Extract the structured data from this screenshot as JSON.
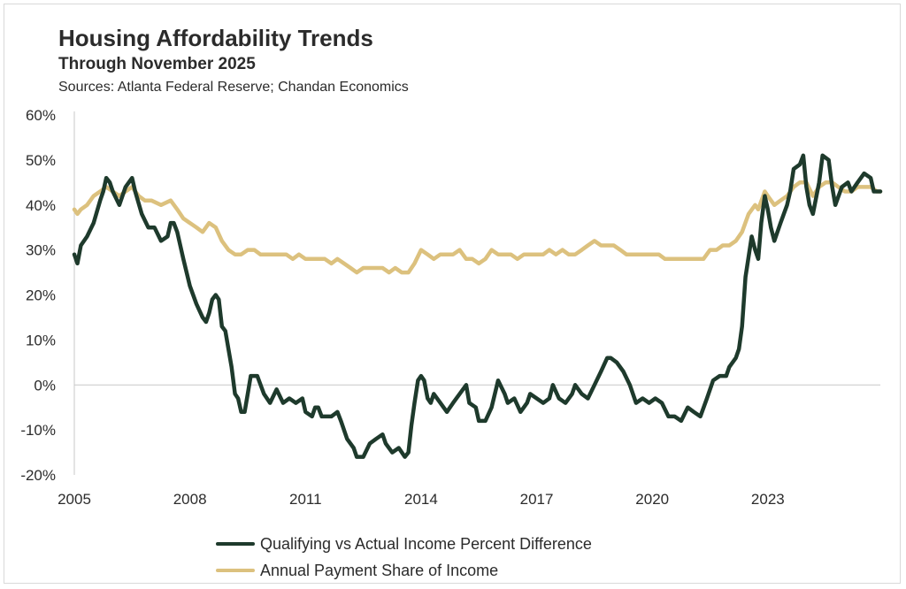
{
  "header": {
    "title": "Housing Affordability Trends",
    "subtitle": "Through November 2025",
    "source": "Sources: Atlanta Federal Reserve; Chandan Economics"
  },
  "colors": {
    "qualifying": "#1e3a2c",
    "payment": "#dcc17e",
    "axis": "#c8c8c8",
    "text": "#2b2b2b"
  },
  "chart_data": {
    "type": "line",
    "title": "Housing Affordability Trends",
    "subtitle": "Through November 2025",
    "xlabel": "",
    "ylabel": "",
    "xlim": [
      2005.0,
      2025.92
    ],
    "ylim": [
      -20,
      60
    ],
    "x_ticks": [
      "2005",
      "2008",
      "2011",
      "2014",
      "2017",
      "2020",
      "2023"
    ],
    "y_ticks": [
      "60%",
      "50%",
      "40%",
      "30%",
      "20%",
      "10%",
      "0%",
      "-10%",
      "-20%"
    ],
    "legend_position": "bottom",
    "series": [
      {
        "name": "Qualifying vs Actual Income Percent Difference",
        "points": [
          [
            2005.0,
            29
          ],
          [
            2005.08,
            27
          ],
          [
            2005.17,
            31
          ],
          [
            2005.33,
            33
          ],
          [
            2005.5,
            36
          ],
          [
            2005.67,
            41
          ],
          [
            2005.75,
            43
          ],
          [
            2005.83,
            46
          ],
          [
            2005.92,
            45
          ],
          [
            2006.0,
            43
          ],
          [
            2006.17,
            40
          ],
          [
            2006.33,
            44
          ],
          [
            2006.5,
            46
          ],
          [
            2006.58,
            43
          ],
          [
            2006.75,
            38
          ],
          [
            2006.92,
            35
          ],
          [
            2007.08,
            35
          ],
          [
            2007.25,
            32
          ],
          [
            2007.42,
            33
          ],
          [
            2007.5,
            36
          ],
          [
            2007.58,
            36
          ],
          [
            2007.67,
            34
          ],
          [
            2007.83,
            28
          ],
          [
            2008.0,
            22
          ],
          [
            2008.17,
            18
          ],
          [
            2008.33,
            15
          ],
          [
            2008.42,
            14
          ],
          [
            2008.5,
            16
          ],
          [
            2008.58,
            19
          ],
          [
            2008.67,
            20
          ],
          [
            2008.75,
            19
          ],
          [
            2008.83,
            13
          ],
          [
            2008.92,
            12
          ],
          [
            2009.0,
            8
          ],
          [
            2009.08,
            4
          ],
          [
            2009.17,
            -2
          ],
          [
            2009.25,
            -3
          ],
          [
            2009.33,
            -6
          ],
          [
            2009.42,
            -6
          ],
          [
            2009.5,
            -2
          ],
          [
            2009.58,
            2
          ],
          [
            2009.75,
            2
          ],
          [
            2009.92,
            -2
          ],
          [
            2010.08,
            -4
          ],
          [
            2010.25,
            -1
          ],
          [
            2010.42,
            -4
          ],
          [
            2010.58,
            -3
          ],
          [
            2010.75,
            -4
          ],
          [
            2010.92,
            -3
          ],
          [
            2011.0,
            -6
          ],
          [
            2011.17,
            -7
          ],
          [
            2011.25,
            -5
          ],
          [
            2011.33,
            -5
          ],
          [
            2011.42,
            -7
          ],
          [
            2011.5,
            -7
          ],
          [
            2011.67,
            -7
          ],
          [
            2011.83,
            -6
          ],
          [
            2011.92,
            -8
          ],
          [
            2012.08,
            -12
          ],
          [
            2012.25,
            -14
          ],
          [
            2012.33,
            -16
          ],
          [
            2012.5,
            -16
          ],
          [
            2012.67,
            -13
          ],
          [
            2012.83,
            -12
          ],
          [
            2013.0,
            -11
          ],
          [
            2013.08,
            -13
          ],
          [
            2013.25,
            -15
          ],
          [
            2013.42,
            -14
          ],
          [
            2013.58,
            -16
          ],
          [
            2013.67,
            -15
          ],
          [
            2013.75,
            -9
          ],
          [
            2013.83,
            -4
          ],
          [
            2013.92,
            1
          ],
          [
            2014.0,
            2
          ],
          [
            2014.08,
            1
          ],
          [
            2014.17,
            -3
          ],
          [
            2014.25,
            -4
          ],
          [
            2014.33,
            -2
          ],
          [
            2014.5,
            -4
          ],
          [
            2014.67,
            -6
          ],
          [
            2014.83,
            -4
          ],
          [
            2015.0,
            -2
          ],
          [
            2015.17,
            0
          ],
          [
            2015.25,
            -4
          ],
          [
            2015.42,
            -5
          ],
          [
            2015.5,
            -8
          ],
          [
            2015.67,
            -8
          ],
          [
            2015.83,
            -5
          ],
          [
            2016.0,
            1
          ],
          [
            2016.17,
            -2
          ],
          [
            2016.25,
            -4
          ],
          [
            2016.42,
            -3
          ],
          [
            2016.58,
            -6
          ],
          [
            2016.75,
            -4
          ],
          [
            2016.83,
            -2
          ],
          [
            2017.0,
            -3
          ],
          [
            2017.17,
            -4
          ],
          [
            2017.33,
            -3
          ],
          [
            2017.42,
            0
          ],
          [
            2017.58,
            -3
          ],
          [
            2017.75,
            -4
          ],
          [
            2017.92,
            -2
          ],
          [
            2018.0,
            0
          ],
          [
            2018.17,
            -2
          ],
          [
            2018.33,
            -3
          ],
          [
            2018.5,
            0
          ],
          [
            2018.67,
            3
          ],
          [
            2018.83,
            6
          ],
          [
            2018.92,
            6
          ],
          [
            2019.08,
            5
          ],
          [
            2019.25,
            3
          ],
          [
            2019.42,
            0
          ],
          [
            2019.58,
            -4
          ],
          [
            2019.75,
            -3
          ],
          [
            2019.92,
            -4
          ],
          [
            2020.08,
            -3
          ],
          [
            2020.25,
            -4
          ],
          [
            2020.42,
            -7
          ],
          [
            2020.58,
            -7
          ],
          [
            2020.75,
            -8
          ],
          [
            2020.92,
            -5
          ],
          [
            2021.08,
            -6
          ],
          [
            2021.25,
            -7
          ],
          [
            2021.42,
            -3
          ],
          [
            2021.58,
            1
          ],
          [
            2021.75,
            2
          ],
          [
            2021.92,
            2
          ],
          [
            2022.0,
            4
          ],
          [
            2022.17,
            6
          ],
          [
            2022.25,
            8
          ],
          [
            2022.33,
            13
          ],
          [
            2022.42,
            24
          ],
          [
            2022.58,
            33
          ],
          [
            2022.67,
            30
          ],
          [
            2022.75,
            28
          ],
          [
            2022.83,
            36
          ],
          [
            2022.92,
            42
          ],
          [
            2023.0,
            39
          ],
          [
            2023.08,
            35
          ],
          [
            2023.17,
            32
          ],
          [
            2023.33,
            36
          ],
          [
            2023.5,
            40
          ],
          [
            2023.58,
            43
          ],
          [
            2023.67,
            48
          ],
          [
            2023.83,
            49
          ],
          [
            2023.92,
            51
          ],
          [
            2024.0,
            44
          ],
          [
            2024.08,
            40
          ],
          [
            2024.17,
            38
          ],
          [
            2024.33,
            45
          ],
          [
            2024.42,
            51
          ],
          [
            2024.58,
            50
          ],
          [
            2024.67,
            44
          ],
          [
            2024.75,
            40
          ],
          [
            2024.92,
            44
          ],
          [
            2025.08,
            45
          ],
          [
            2025.17,
            43
          ],
          [
            2025.33,
            45
          ],
          [
            2025.5,
            47
          ],
          [
            2025.67,
            46
          ],
          [
            2025.75,
            43
          ],
          [
            2025.92,
            43
          ]
        ]
      },
      {
        "name": "Annual Payment Share of Income",
        "points": [
          [
            2005.0,
            39
          ],
          [
            2005.08,
            38
          ],
          [
            2005.17,
            39
          ],
          [
            2005.33,
            40
          ],
          [
            2005.5,
            42
          ],
          [
            2005.67,
            43
          ],
          [
            2005.83,
            44
          ],
          [
            2006.0,
            43
          ],
          [
            2006.17,
            42
          ],
          [
            2006.33,
            43
          ],
          [
            2006.5,
            44
          ],
          [
            2006.67,
            42
          ],
          [
            2006.83,
            41
          ],
          [
            2007.0,
            41
          ],
          [
            2007.25,
            40
          ],
          [
            2007.5,
            41
          ],
          [
            2007.67,
            39
          ],
          [
            2007.83,
            37
          ],
          [
            2008.0,
            36
          ],
          [
            2008.17,
            35
          ],
          [
            2008.33,
            34
          ],
          [
            2008.5,
            36
          ],
          [
            2008.67,
            35
          ],
          [
            2008.83,
            32
          ],
          [
            2009.0,
            30
          ],
          [
            2009.17,
            29
          ],
          [
            2009.33,
            29
          ],
          [
            2009.5,
            30
          ],
          [
            2009.67,
            30
          ],
          [
            2009.83,
            29
          ],
          [
            2010.0,
            29
          ],
          [
            2010.17,
            29
          ],
          [
            2010.33,
            29
          ],
          [
            2010.5,
            29
          ],
          [
            2010.67,
            28
          ],
          [
            2010.83,
            29
          ],
          [
            2011.0,
            28
          ],
          [
            2011.17,
            28
          ],
          [
            2011.33,
            28
          ],
          [
            2011.5,
            28
          ],
          [
            2011.67,
            27
          ],
          [
            2011.83,
            28
          ],
          [
            2012.0,
            27
          ],
          [
            2012.17,
            26
          ],
          [
            2012.33,
            25
          ],
          [
            2012.5,
            26
          ],
          [
            2012.67,
            26
          ],
          [
            2012.83,
            26
          ],
          [
            2013.0,
            26
          ],
          [
            2013.17,
            25
          ],
          [
            2013.33,
            26
          ],
          [
            2013.5,
            25
          ],
          [
            2013.67,
            25
          ],
          [
            2013.83,
            27
          ],
          [
            2014.0,
            30
          ],
          [
            2014.17,
            29
          ],
          [
            2014.33,
            28
          ],
          [
            2014.5,
            29
          ],
          [
            2014.67,
            29
          ],
          [
            2014.83,
            29
          ],
          [
            2015.0,
            30
          ],
          [
            2015.17,
            28
          ],
          [
            2015.33,
            28
          ],
          [
            2015.5,
            27
          ],
          [
            2015.67,
            28
          ],
          [
            2015.83,
            30
          ],
          [
            2016.0,
            29
          ],
          [
            2016.17,
            29
          ],
          [
            2016.33,
            29
          ],
          [
            2016.5,
            28
          ],
          [
            2016.67,
            29
          ],
          [
            2016.83,
            29
          ],
          [
            2017.0,
            29
          ],
          [
            2017.17,
            29
          ],
          [
            2017.33,
            30
          ],
          [
            2017.5,
            29
          ],
          [
            2017.67,
            30
          ],
          [
            2017.83,
            29
          ],
          [
            2018.0,
            29
          ],
          [
            2018.17,
            30
          ],
          [
            2018.33,
            31
          ],
          [
            2018.5,
            32
          ],
          [
            2018.67,
            31
          ],
          [
            2018.83,
            31
          ],
          [
            2019.0,
            31
          ],
          [
            2019.17,
            30
          ],
          [
            2019.33,
            29
          ],
          [
            2019.5,
            29
          ],
          [
            2019.67,
            29
          ],
          [
            2019.83,
            29
          ],
          [
            2020.0,
            29
          ],
          [
            2020.17,
            29
          ],
          [
            2020.33,
            28
          ],
          [
            2020.5,
            28
          ],
          [
            2020.67,
            28
          ],
          [
            2020.83,
            28
          ],
          [
            2021.0,
            28
          ],
          [
            2021.17,
            28
          ],
          [
            2021.33,
            28
          ],
          [
            2021.5,
            30
          ],
          [
            2021.67,
            30
          ],
          [
            2021.83,
            31
          ],
          [
            2022.0,
            31
          ],
          [
            2022.17,
            32
          ],
          [
            2022.33,
            34
          ],
          [
            2022.5,
            38
          ],
          [
            2022.67,
            40
          ],
          [
            2022.75,
            39
          ],
          [
            2022.92,
            43
          ],
          [
            2023.0,
            42
          ],
          [
            2023.17,
            40
          ],
          [
            2023.33,
            41
          ],
          [
            2023.5,
            42
          ],
          [
            2023.67,
            44
          ],
          [
            2023.83,
            45
          ],
          [
            2024.0,
            45
          ],
          [
            2024.17,
            42
          ],
          [
            2024.33,
            44
          ],
          [
            2024.5,
            45
          ],
          [
            2024.67,
            45
          ],
          [
            2024.83,
            44
          ],
          [
            2025.0,
            43
          ],
          [
            2025.17,
            43
          ],
          [
            2025.33,
            44
          ],
          [
            2025.5,
            44
          ],
          [
            2025.67,
            44
          ],
          [
            2025.83,
            43
          ],
          [
            2025.92,
            43
          ]
        ]
      }
    ]
  }
}
